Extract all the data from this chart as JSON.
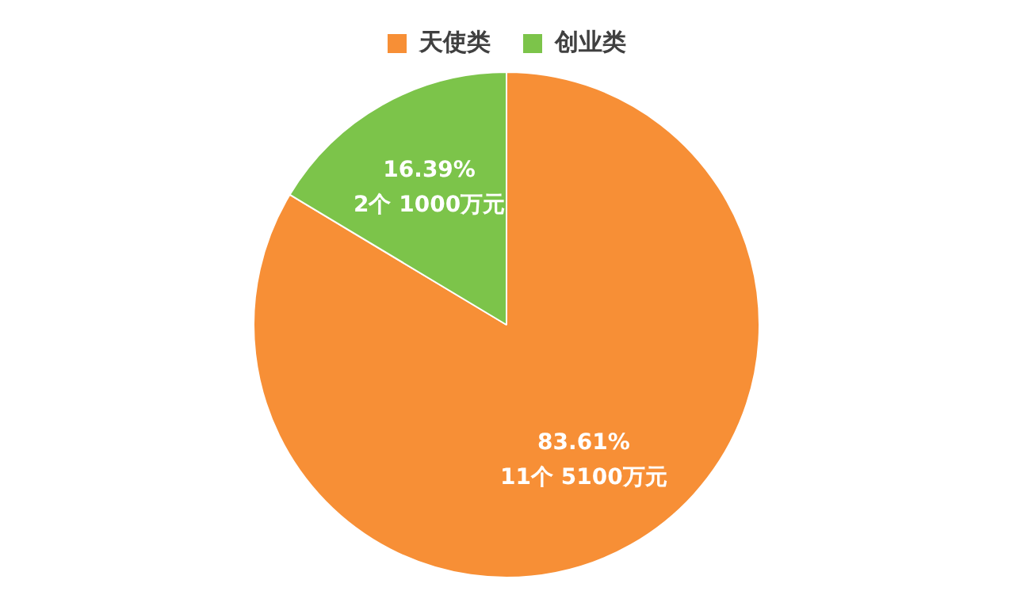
{
  "chart_data": {
    "type": "pie",
    "categories": [
      "天使类",
      "创业类"
    ],
    "values": [
      83.61,
      16.39
    ],
    "colors": [
      "#f78f36",
      "#7cc44a"
    ],
    "value_labels": [
      "83.61%\n11个 5100万元",
      "16.39%\n2个 1000万元"
    ],
    "legend": "top"
  }
}
